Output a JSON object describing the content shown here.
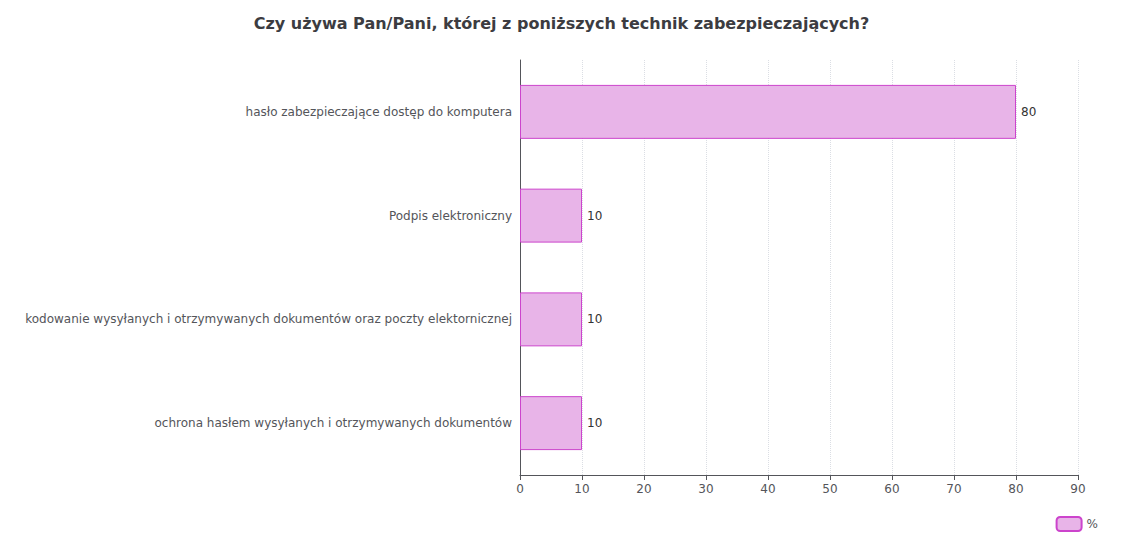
{
  "chart_data": {
    "type": "bar",
    "orientation": "horizontal",
    "title": "Czy używa Pan/Pani, której z poniższych technik zabezpieczających?",
    "categories": [
      "ochrona hasłem wysyłanych i otrzymywanych dokumentów",
      "kodowanie wysyłanych i otrzymywanych dokumentów oraz poczty elektornicznej",
      "Podpis elektroniczny",
      "hasło zabezpieczające dostęp do komputera"
    ],
    "series": [
      {
        "name": "%",
        "color": "#e8b4e8",
        "values": [
          10,
          10,
          10,
          80
        ]
      }
    ],
    "xlim": [
      0,
      90
    ],
    "xticks": [
      0,
      10,
      20,
      30,
      40,
      50,
      60,
      70,
      80,
      90
    ],
    "grid": true,
    "data_labels": true,
    "legend": "lower right"
  }
}
